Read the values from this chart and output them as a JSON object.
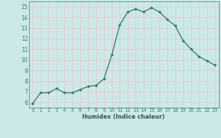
{
  "x": [
    0,
    1,
    2,
    3,
    4,
    5,
    6,
    7,
    8,
    9,
    10,
    11,
    12,
    13,
    14,
    15,
    16,
    17,
    18,
    19,
    20,
    21,
    22,
    23
  ],
  "y": [
    5.9,
    6.9,
    6.9,
    7.3,
    6.9,
    6.9,
    7.2,
    7.5,
    7.6,
    8.2,
    10.5,
    13.3,
    14.5,
    14.8,
    14.5,
    14.9,
    14.5,
    13.8,
    13.2,
    11.8,
    11.0,
    10.3,
    9.9,
    9.5
  ],
  "line_color": "#2e7d6e",
  "marker": "D",
  "marker_size": 1.8,
  "line_width": 1.0,
  "xlabel": "Humidex (Indice chaleur)",
  "xlim": [
    -0.5,
    23.5
  ],
  "ylim": [
    5.5,
    15.5
  ],
  "yticks": [
    6,
    7,
    8,
    9,
    10,
    11,
    12,
    13,
    14,
    15
  ],
  "xticks": [
    0,
    1,
    2,
    3,
    4,
    5,
    6,
    7,
    8,
    9,
    10,
    11,
    12,
    13,
    14,
    15,
    16,
    17,
    18,
    19,
    20,
    21,
    22,
    23
  ],
  "xtick_labels": [
    "0",
    "1",
    "2",
    "3",
    "4",
    "5",
    "6",
    "7",
    "8",
    "9",
    "10",
    "11",
    "12",
    "13",
    "14",
    "15",
    "16",
    "17",
    "18",
    "19",
    "20",
    "21",
    "22",
    "23"
  ],
  "bg_color": "#cde8e8",
  "grid_color": "#e8c8c8",
  "tick_color": "#2e7d6e",
  "label_color": "#2e5555"
}
